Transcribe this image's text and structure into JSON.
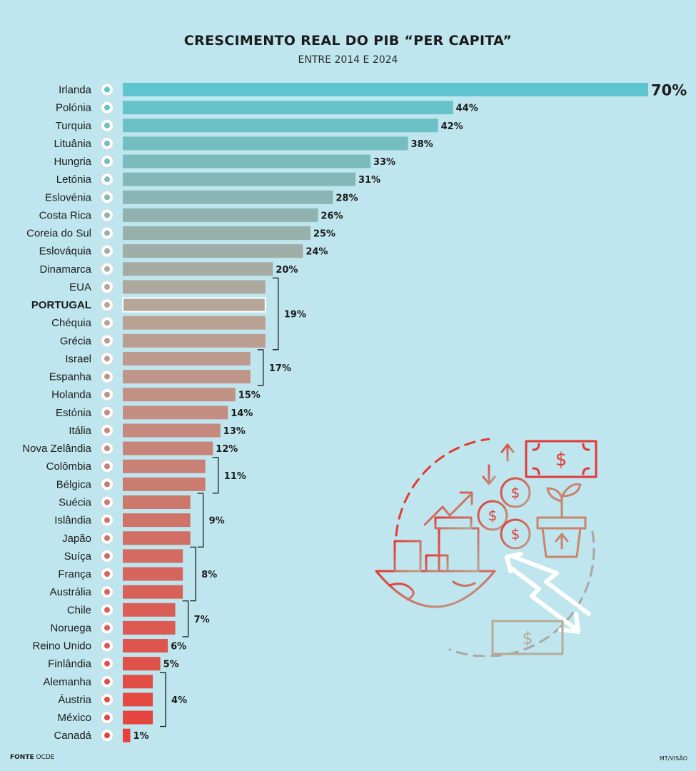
{
  "chart_data": {
    "type": "bar",
    "orientation": "horizontal",
    "title": "CRESCIMENTO REAL DO PIB “PER CAPITA”",
    "subtitle": "ENTRE 2014 E 2024",
    "unit": "%",
    "highlight": "PORTUGAL",
    "colors": {
      "top": "#5fc6cf",
      "bottom": "#e8403a",
      "highlight_outline": "#ffffff"
    },
    "categories": [
      "Irlanda",
      "Polónia",
      "Turquia",
      "Lituânia",
      "Hungria",
      "Letónia",
      "Eslovénia",
      "Costa Rica",
      "Coreia do Sul",
      "Eslováquia",
      "Dinamarca",
      "EUA",
      "PORTUGAL",
      "Chéquia",
      "Grécia",
      "Israel",
      "Espanha",
      "Holanda",
      "Estónia",
      "Itália",
      "Nova Zelândia",
      "Colômbia",
      "Bélgica",
      "Suécia",
      "Islândia",
      "Japão",
      "Suíça",
      "França",
      "Austrália",
      "Chile",
      "Noruega",
      "Reino Unido",
      "Finlândia",
      "Alemanha",
      "Áustria",
      "México",
      "Canadá"
    ],
    "values": [
      70,
      44,
      42,
      38,
      33,
      31,
      28,
      26,
      25,
      24,
      20,
      19,
      19,
      19,
      19,
      17,
      17,
      15,
      14,
      13,
      12,
      11,
      11,
      9,
      9,
      9,
      8,
      8,
      8,
      7,
      7,
      6,
      5,
      4,
      4,
      4,
      1
    ],
    "flags": [
      "ireland-flag-icon",
      "poland-flag-icon",
      "turkey-flag-icon",
      "lithuania-flag-icon",
      "hungary-flag-icon",
      "latvia-flag-icon",
      "slovenia-flag-icon",
      "costa-rica-flag-icon",
      "south-korea-flag-icon",
      "slovakia-flag-icon",
      "denmark-flag-icon",
      "usa-flag-icon",
      "portugal-flag-icon",
      "czechia-flag-icon",
      "greece-flag-icon",
      "israel-flag-icon",
      "spain-flag-icon",
      "netherlands-flag-icon",
      "estonia-flag-icon",
      "italy-flag-icon",
      "new-zealand-flag-icon",
      "colombia-flag-icon",
      "belgium-flag-icon",
      "sweden-flag-icon",
      "iceland-flag-icon",
      "japan-flag-icon",
      "switzerland-flag-icon",
      "france-flag-icon",
      "australia-flag-icon",
      "chile-flag-icon",
      "norway-flag-icon",
      "uk-flag-icon",
      "finland-flag-icon",
      "germany-flag-icon",
      "austria-flag-icon",
      "mexico-flag-icon",
      "canada-flag-icon"
    ],
    "labels": [
      "70%",
      "44%",
      "42%",
      "38%",
      "33%",
      "31%",
      "28%",
      "26%",
      "25%",
      "24%",
      "20%",
      "",
      "",
      "",
      "",
      "",
      "",
      "15%",
      "14%",
      "13%",
      "12%",
      "",
      "",
      "",
      "",
      "",
      "",
      "",
      "",
      "",
      "",
      "6%",
      "5%",
      "",
      "",
      "",
      "1%"
    ],
    "groups": [
      {
        "from": 11,
        "to": 14,
        "label": "19%"
      },
      {
        "from": 15,
        "to": 16,
        "label": "17%"
      },
      {
        "from": 21,
        "to": 22,
        "label": "11%"
      },
      {
        "from": 23,
        "to": 25,
        "label": "9%"
      },
      {
        "from": 26,
        "to": 28,
        "label": "8%"
      },
      {
        "from": 29,
        "to": 30,
        "label": "7%"
      },
      {
        "from": 33,
        "to": 35,
        "label": "4%"
      }
    ],
    "xlim": [
      0,
      70
    ]
  },
  "footer": {
    "source_label": "FONTE",
    "source": "OCDE",
    "credit": "MT/VISÃO"
  },
  "illustration": {
    "icons": [
      "growth-arrow-icon",
      "money-coins-icon",
      "money-bill-icon",
      "plant-pot-icon",
      "down-trend-arrow-icon",
      "globe-bowl-icon",
      "up-arrow-icon",
      "down-arrow-icon"
    ],
    "dollar_sign": "$"
  }
}
